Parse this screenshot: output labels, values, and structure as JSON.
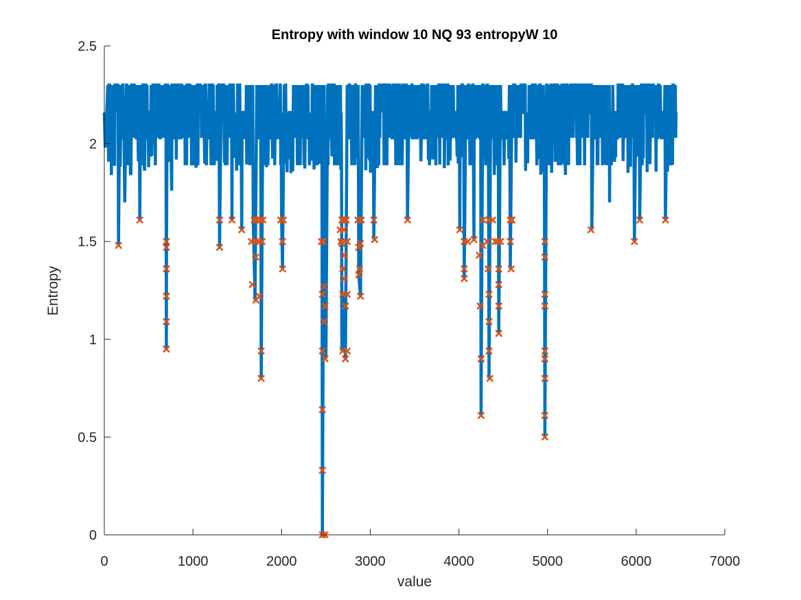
{
  "chart_data": {
    "type": "line",
    "title": "Entropy with window 10  NQ 93  entropyW 10",
    "xlabel": "value",
    "ylabel": "Entropy",
    "xlim": [
      0,
      7000
    ],
    "ylim": [
      0,
      2.5
    ],
    "xticks": [
      0,
      1000,
      2000,
      3000,
      4000,
      5000,
      6000,
      7000
    ],
    "yticks": [
      0,
      0.5,
      1,
      1.5,
      2,
      2.5
    ],
    "xtick_labels": [
      "0",
      "1000",
      "2000",
      "3000",
      "4000",
      "5000",
      "6000",
      "7000"
    ],
    "ytick_labels": [
      "0",
      "0.5",
      "1",
      "1.5",
      "2",
      "2.5"
    ],
    "grid": false,
    "colors": {
      "line": "#0072BD",
      "markers": "#D95319",
      "axes": "#262626"
    },
    "series": [
      {
        "kind": "line",
        "x_range": [
          0,
          6450
        ],
        "baseline_levels": [
          2.03,
          2.16,
          2.3
        ],
        "description_points": [
          [
            0,
            2.16
          ],
          [
            10,
            1.98
          ],
          [
            40,
            2.3
          ],
          [
            80,
            1.84
          ],
          [
            120,
            2.3
          ],
          [
            160,
            1.48
          ],
          [
            175,
            2.3
          ],
          [
            230,
            1.7
          ],
          [
            250,
            2.3
          ],
          [
            300,
            1.84
          ],
          [
            400,
            1.61
          ],
          [
            410,
            2.3
          ],
          [
            500,
            1.88
          ],
          [
            700,
            0.95
          ],
          [
            702,
            1.5
          ],
          [
            710,
            2.3
          ],
          [
            760,
            1.76
          ],
          [
            800,
            2.3
          ],
          [
            1000,
            1.89
          ],
          [
            1300,
            1.47
          ],
          [
            1320,
            2.3
          ],
          [
            1440,
            1.61
          ],
          [
            1550,
            1.56
          ],
          [
            1680,
            1.61
          ],
          [
            1700,
            1.2
          ],
          [
            1720,
            2.3
          ],
          [
            1770,
            0.8
          ],
          [
            1790,
            2.3
          ],
          [
            2000,
            1.61
          ],
          [
            2010,
            1.36
          ],
          [
            2030,
            2.3
          ],
          [
            2460,
            0.0
          ],
          [
            2480,
            2.3
          ],
          [
            2500,
            0.9
          ],
          [
            2520,
            2.3
          ],
          [
            2680,
            0.94
          ],
          [
            2700,
            1.23
          ],
          [
            2720,
            0.9
          ],
          [
            2740,
            2.3
          ],
          [
            2870,
            1.33
          ],
          [
            2890,
            1.22
          ],
          [
            2910,
            2.3
          ],
          [
            3040,
            1.51
          ],
          [
            3060,
            2.3
          ],
          [
            3420,
            1.61
          ],
          [
            3440,
            2.3
          ],
          [
            4010,
            1.56
          ],
          [
            4060,
            1.31
          ],
          [
            4080,
            2.3
          ],
          [
            4170,
            1.51
          ],
          [
            4250,
            0.61
          ],
          [
            4270,
            2.3
          ],
          [
            4340,
            0.8
          ],
          [
            4360,
            2.3
          ],
          [
            4450,
            1.03
          ],
          [
            4470,
            2.3
          ],
          [
            4580,
            1.36
          ],
          [
            4600,
            2.3
          ],
          [
            4970,
            0.5
          ],
          [
            4990,
            2.3
          ],
          [
            5500,
            1.56
          ],
          [
            5520,
            2.3
          ],
          [
            5700,
            1.7
          ],
          [
            5800,
            2.3
          ],
          [
            5980,
            1.5
          ],
          [
            6000,
            2.3
          ],
          [
            6040,
            1.61
          ],
          [
            6060,
            2.3
          ],
          [
            6330,
            1.61
          ],
          [
            6350,
            2.3
          ],
          [
            6450,
            2.16
          ]
        ]
      },
      {
        "kind": "markers",
        "marker": "x",
        "points": [
          [
            160,
            1.48
          ],
          [
            400,
            1.61
          ],
          [
            700,
            1.5
          ],
          [
            700,
            1.47
          ],
          [
            700,
            1.36
          ],
          [
            700,
            1.22
          ],
          [
            700,
            1.09
          ],
          [
            700,
            0.95
          ],
          [
            1300,
            1.61
          ],
          [
            1300,
            1.47
          ],
          [
            1440,
            1.61
          ],
          [
            1550,
            1.56
          ],
          [
            1660,
            1.5
          ],
          [
            1670,
            1.28
          ],
          [
            1690,
            1.61
          ],
          [
            1700,
            1.5
          ],
          [
            1710,
            1.42
          ],
          [
            1710,
            1.2
          ],
          [
            1720,
            1.61
          ],
          [
            1740,
            1.5
          ],
          [
            1750,
            1.22
          ],
          [
            1760,
            1.61
          ],
          [
            1770,
            0.94
          ],
          [
            1770,
            0.8
          ],
          [
            1780,
            1.5
          ],
          [
            1790,
            1.61
          ],
          [
            1990,
            1.61
          ],
          [
            2010,
            1.5
          ],
          [
            2010,
            1.36
          ],
          [
            2020,
            1.61
          ],
          [
            2450,
            1.5
          ],
          [
            2460,
            1.23
          ],
          [
            2460,
            0.94
          ],
          [
            2460,
            0.64
          ],
          [
            2460,
            0.33
          ],
          [
            2460,
            0.0
          ],
          [
            2470,
            1.5
          ],
          [
            2480,
            1.27
          ],
          [
            2480,
            1.09
          ],
          [
            2490,
            1.17
          ],
          [
            2490,
            0.9
          ],
          [
            2490,
            0.0
          ],
          [
            2660,
            1.56
          ],
          [
            2670,
            1.5
          ],
          [
            2680,
            1.61
          ],
          [
            2680,
            1.49
          ],
          [
            2690,
            1.36
          ],
          [
            2690,
            1.23
          ],
          [
            2690,
            0.94
          ],
          [
            2700,
            1.61
          ],
          [
            2700,
            1.56
          ],
          [
            2710,
            1.43
          ],
          [
            2710,
            1.31
          ],
          [
            2720,
            1.17
          ],
          [
            2720,
            0.9
          ],
          [
            2730,
            1.61
          ],
          [
            2740,
            1.5
          ],
          [
            2740,
            1.23
          ],
          [
            2740,
            0.94
          ],
          [
            2860,
            1.61
          ],
          [
            2870,
            1.47
          ],
          [
            2870,
            1.33
          ],
          [
            2880,
            1.36
          ],
          [
            2890,
            1.49
          ],
          [
            2890,
            1.22
          ],
          [
            2900,
            1.61
          ],
          [
            3040,
            1.61
          ],
          [
            3050,
            1.51
          ],
          [
            3420,
            1.61
          ],
          [
            4010,
            1.56
          ],
          [
            4060,
            1.5
          ],
          [
            4060,
            1.36
          ],
          [
            4060,
            1.31
          ],
          [
            4100,
            1.5
          ],
          [
            4170,
            1.51
          ],
          [
            4230,
            1.43
          ],
          [
            4240,
            1.17
          ],
          [
            4250,
            0.9
          ],
          [
            4250,
            0.61
          ],
          [
            4270,
            1.61
          ],
          [
            4270,
            1.48
          ],
          [
            4320,
            1.5
          ],
          [
            4330,
            1.36
          ],
          [
            4340,
            1.61
          ],
          [
            4340,
            1.23
          ],
          [
            4340,
            1.09
          ],
          [
            4340,
            0.94
          ],
          [
            4350,
            0.8
          ],
          [
            4380,
            1.61
          ],
          [
            4410,
            1.5
          ],
          [
            4440,
            1.5
          ],
          [
            4450,
            1.36
          ],
          [
            4450,
            1.28
          ],
          [
            4450,
            1.17
          ],
          [
            4450,
            1.03
          ],
          [
            4470,
            1.5
          ],
          [
            4580,
            1.61
          ],
          [
            4580,
            1.5
          ],
          [
            4590,
            1.36
          ],
          [
            4600,
            1.61
          ],
          [
            4970,
            1.5
          ],
          [
            4970,
            1.42
          ],
          [
            4970,
            1.23
          ],
          [
            4970,
            1.17
          ],
          [
            4970,
            0.94
          ],
          [
            4970,
            0.9
          ],
          [
            4970,
            0.8
          ],
          [
            4970,
            0.61
          ],
          [
            4970,
            0.5
          ],
          [
            5490,
            1.56
          ],
          [
            5980,
            1.5
          ],
          [
            6040,
            1.61
          ],
          [
            6330,
            1.61
          ]
        ]
      }
    ]
  }
}
